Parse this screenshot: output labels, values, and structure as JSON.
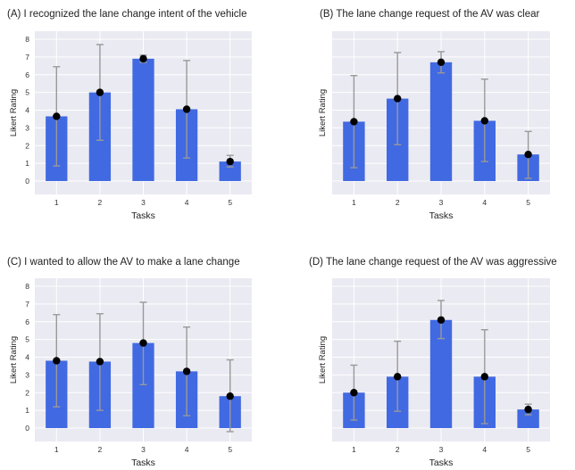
{
  "colors": {
    "bar": "#4169e1",
    "error": "#999999",
    "dot": "#000000",
    "plot_bg": "#eaeaf2",
    "grid": "#ffffff"
  },
  "chart_data": [
    {
      "type": "bar",
      "title": "(A) I recognized the lane change intent of the vehicle",
      "xlabel": "Tasks",
      "ylabel": "Likert Rating",
      "categories": [
        "1",
        "2",
        "3",
        "4",
        "5"
      ],
      "values": [
        3.65,
        5.0,
        6.9,
        4.05,
        1.1
      ],
      "error_low": [
        0.85,
        2.3,
        6.7,
        1.3,
        0.8
      ],
      "error_high": [
        6.45,
        7.7,
        7.1,
        6.8,
        1.45
      ],
      "ylim": [
        0,
        8
      ],
      "yticks": [
        "0",
        "1",
        "2",
        "3",
        "4",
        "5",
        "6",
        "7",
        "8"
      ],
      "grid": true
    },
    {
      "type": "bar",
      "title": "(B) The lane change request of the AV was clear",
      "xlabel": "Tasks",
      "ylabel": "Likert Rating",
      "categories": [
        "1",
        "2",
        "3",
        "4",
        "5"
      ],
      "values": [
        3.35,
        4.65,
        6.7,
        3.4,
        1.5
      ],
      "error_low": [
        0.75,
        2.05,
        6.1,
        1.1,
        0.15
      ],
      "error_high": [
        5.95,
        7.25,
        7.3,
        5.75,
        2.8
      ],
      "ylim": [
        0,
        8
      ],
      "yticks": [],
      "grid": true
    },
    {
      "type": "bar",
      "title": "(C) I wanted to allow the AV to make a lane change",
      "xlabel": "Tasks",
      "ylabel": "Likert Rating",
      "categories": [
        "1",
        "2",
        "3",
        "4",
        "5"
      ],
      "values": [
        3.8,
        3.75,
        4.8,
        3.2,
        1.8
      ],
      "error_low": [
        1.2,
        1.0,
        2.45,
        0.7,
        -0.2
      ],
      "error_high": [
        6.4,
        6.45,
        7.1,
        5.7,
        3.85
      ],
      "ylim": [
        0,
        8
      ],
      "yticks": [
        "0",
        "1",
        "2",
        "3",
        "4",
        "5",
        "6",
        "7",
        "8"
      ],
      "grid": true
    },
    {
      "type": "bar",
      "title": "(D) The lane change request of the AV was aggressive",
      "xlabel": "Tasks",
      "ylabel": "Likert Rating",
      "categories": [
        "1",
        "2",
        "3",
        "4",
        "5"
      ],
      "values": [
        2.0,
        2.9,
        6.1,
        2.9,
        1.05
      ],
      "error_low": [
        0.45,
        0.95,
        5.05,
        0.25,
        0.75
      ],
      "error_high": [
        3.55,
        4.9,
        7.2,
        5.55,
        1.35
      ],
      "ylim": [
        0,
        8
      ],
      "yticks": [],
      "grid": true
    }
  ]
}
